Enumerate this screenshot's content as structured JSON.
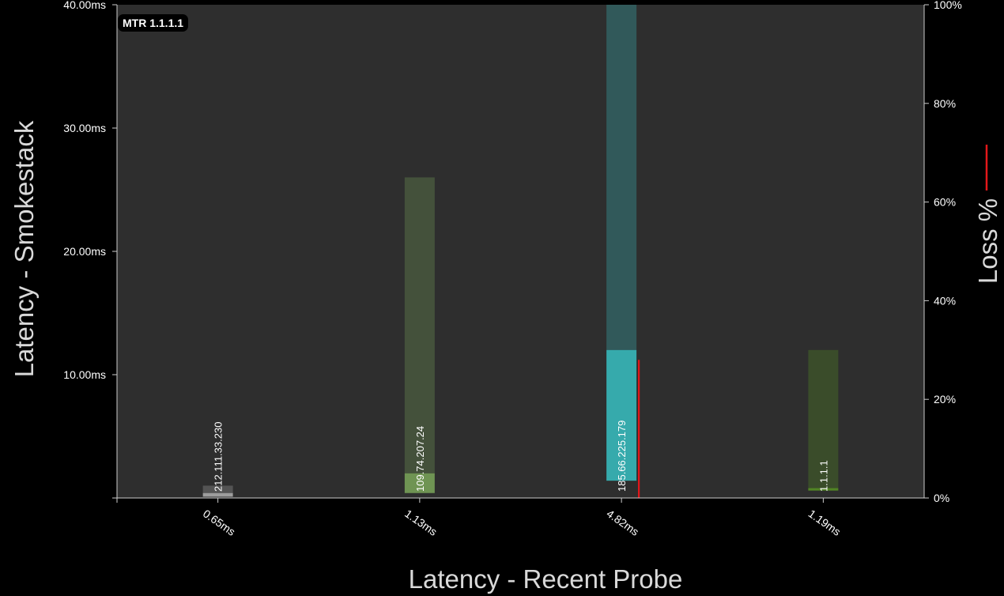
{
  "chart_data": {
    "type": "bar",
    "title": "MTR 1.1.1.1",
    "xlabel": "Latency - Recent Probe",
    "ylabel": "Latency - Smokestack",
    "y2label": "Loss %",
    "ylim": [
      0,
      40
    ],
    "y2lim": [
      0,
      100
    ],
    "yticks": [
      "",
      "10.00ms",
      "20.00ms",
      "30.00ms",
      "40.00ms"
    ],
    "y2ticks": [
      "0%",
      "20%",
      "40%",
      "60%",
      "80%",
      "100%"
    ],
    "grid": false,
    "legend": "none",
    "categories": [
      "0.65ms",
      "1.13ms",
      "4.82ms",
      "1.19ms"
    ],
    "series": [
      {
        "name": "",
        "hops": [
          {
            "host": "212.111.33.230",
            "recent": 0.65,
            "min": 0.1,
            "median": 0.4,
            "max": 1.0,
            "loss": 0,
            "color": "#b8b8b8"
          },
          {
            "host": "109.74.207.24",
            "recent": 1.13,
            "min": 0.4,
            "median": 2.0,
            "max": 26.0,
            "loss": 0,
            "color": "#7fae5c"
          },
          {
            "host": "185.66.225.179",
            "recent": 4.82,
            "min": 1.4,
            "median": 12.0,
            "max": 40.0,
            "loss": 28,
            "color": "#38c9cc"
          },
          {
            "host": "1.1.1.1",
            "recent": 1.19,
            "min": 0.6,
            "median": 0.8,
            "max": 12.0,
            "loss": 0,
            "color": "#5a9a22"
          }
        ]
      }
    ]
  },
  "colors": {
    "background": "#2e2e2e",
    "axis": "#cccccc",
    "loss": "#e3171a"
  }
}
